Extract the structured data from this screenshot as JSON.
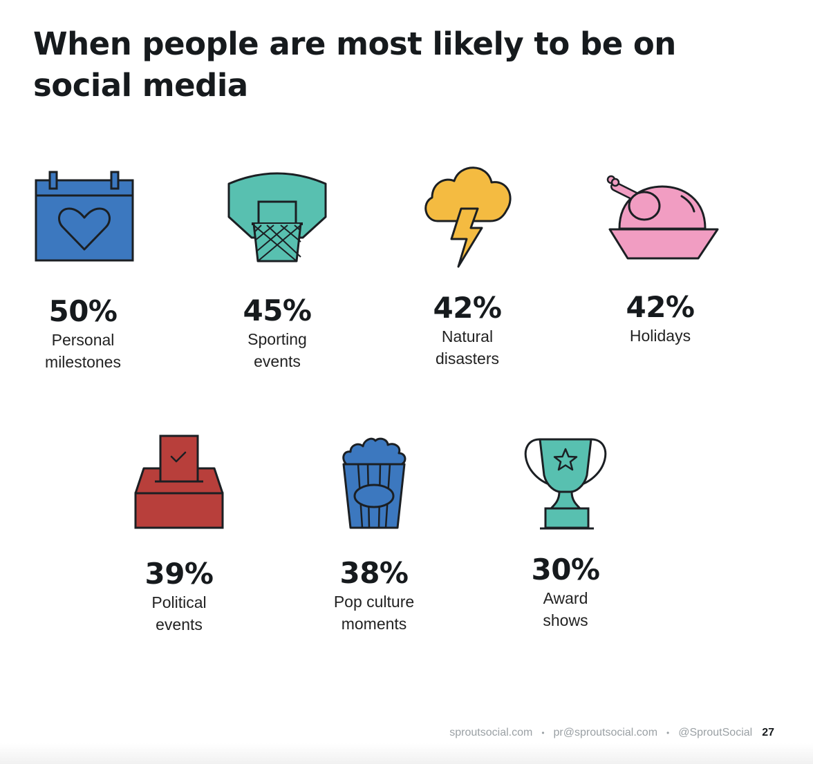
{
  "title": "When people are most likely to be on social media",
  "colors": {
    "blue": "#3c78bf",
    "teal": "#58c0b0",
    "yellow": "#f4bb41",
    "pink": "#f19dc2",
    "red": "#b83f3b",
    "ink": "#1b1f23"
  },
  "stats": [
    {
      "value": "50%",
      "label": "Personal\nmilestones",
      "icon": "calendar-heart-icon"
    },
    {
      "value": "45%",
      "label": "Sporting\nevents",
      "icon": "basketball-hoop-icon"
    },
    {
      "value": "42%",
      "label": "Natural\ndisasters",
      "icon": "storm-cloud-icon"
    },
    {
      "value": "42%",
      "label": "Holidays",
      "icon": "roast-turkey-icon"
    },
    {
      "value": "39%",
      "label": "Political\nevents",
      "icon": "ballot-box-icon"
    },
    {
      "value": "38%",
      "label": "Pop culture\nmoments",
      "icon": "popcorn-icon"
    },
    {
      "value": "30%",
      "label": "Award\nshows",
      "icon": "trophy-icon"
    }
  ],
  "footer": {
    "website": "sproutsocial.com",
    "email": "pr@sproutsocial.com",
    "handle": "@SproutSocial",
    "page": "27"
  }
}
